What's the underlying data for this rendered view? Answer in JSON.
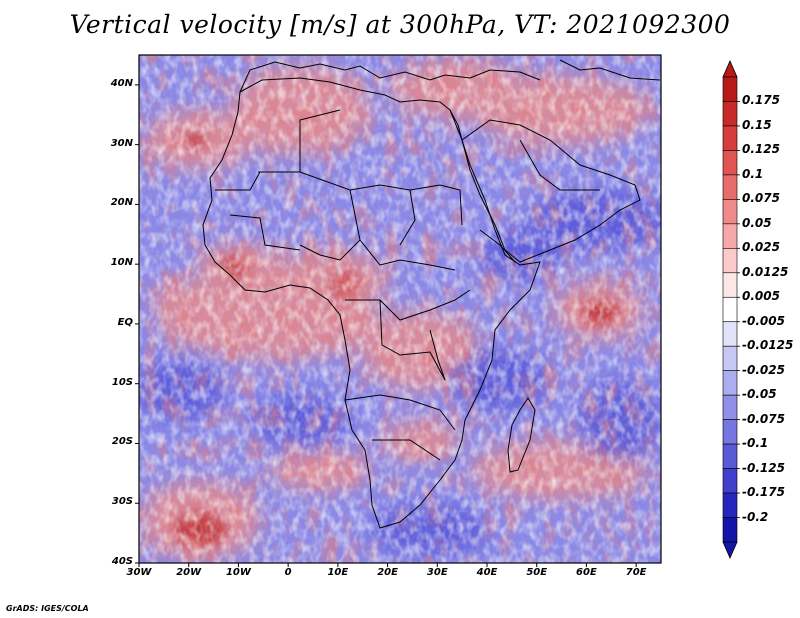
{
  "title": "Vertical velocity [m/s] at 300hPa, VT: 2021092300",
  "credit": "GrADS: IGES/COLA",
  "map": {
    "field": "Vertical velocity",
    "units": "m/s",
    "level": "300hPa",
    "valid_time": "2021092300",
    "lon_range": [
      -30,
      75
    ],
    "lat_range": [
      -40,
      45
    ],
    "lat_labels": [
      {
        "value": 40,
        "text": "40N"
      },
      {
        "value": 30,
        "text": "30N"
      },
      {
        "value": 20,
        "text": "20N"
      },
      {
        "value": 10,
        "text": "10N"
      },
      {
        "value": 0,
        "text": "EQ"
      },
      {
        "value": -10,
        "text": "10S"
      },
      {
        "value": -20,
        "text": "20S"
      },
      {
        "value": -30,
        "text": "30S"
      },
      {
        "value": -40,
        "text": "40S"
      }
    ],
    "lon_labels": [
      {
        "value": -30,
        "text": "30W"
      },
      {
        "value": -20,
        "text": "20W"
      },
      {
        "value": -10,
        "text": "10W"
      },
      {
        "value": 0,
        "text": "0"
      },
      {
        "value": 10,
        "text": "10E"
      },
      {
        "value": 20,
        "text": "20E"
      },
      {
        "value": 30,
        "text": "30E"
      },
      {
        "value": 40,
        "text": "40E"
      },
      {
        "value": 50,
        "text": "50E"
      },
      {
        "value": 60,
        "text": "60E"
      },
      {
        "value": 70,
        "text": "70E"
      }
    ],
    "positive_color": "#c03030",
    "negative_color": "#3a3ad0",
    "background_color": "#ffffff"
  },
  "colorbar": {
    "labels": [
      "0.175",
      "0.15",
      "0.125",
      "0.1",
      "0.075",
      "0.05",
      "0.025",
      "0.0125",
      "0.005",
      "-0.005",
      "-0.0125",
      "-0.025",
      "-0.05",
      "-0.075",
      "-0.1",
      "-0.125",
      "-0.175",
      "-0.2"
    ],
    "colors": [
      "#b81818",
      "#c82a2a",
      "#d63e3e",
      "#e05454",
      "#e86c6c",
      "#f08a8a",
      "#f6a8a8",
      "#fbcaca",
      "#fde6e6",
      "#ffffff",
      "#e2e2fb",
      "#c8c8f6",
      "#acacf0",
      "#9090e8",
      "#7676e0",
      "#5a5ad6",
      "#4040cc",
      "#2626be",
      "#1414a8"
    ],
    "top_arrow_color": "#b81818",
    "bottom_arrow_color": "#1414a8"
  }
}
